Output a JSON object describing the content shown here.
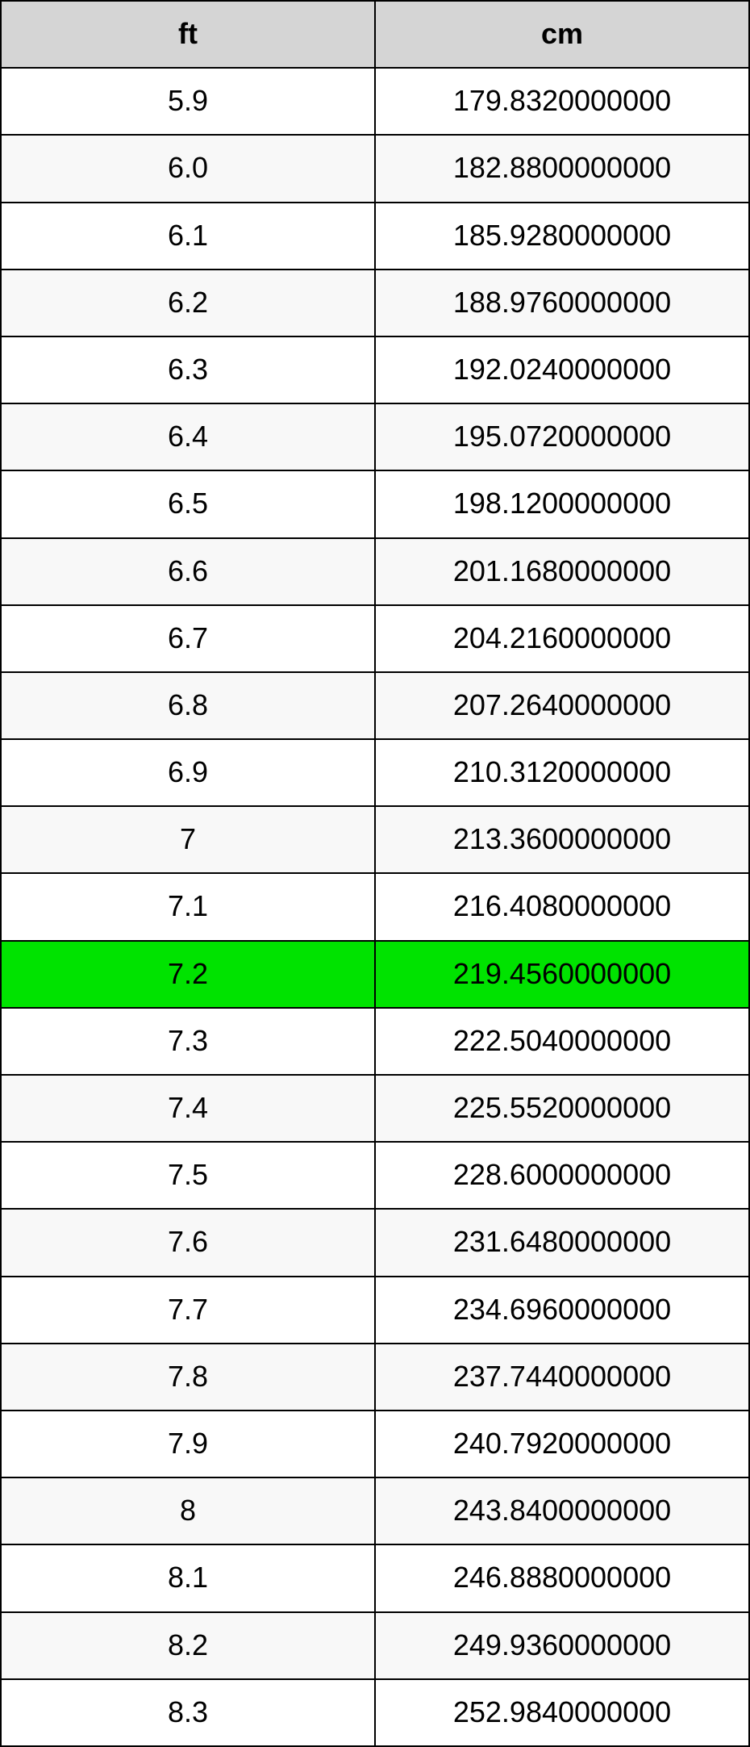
{
  "conversion_table": {
    "type": "table",
    "columns": [
      "ft",
      "cm"
    ],
    "column_widths": [
      "50%",
      "50%"
    ],
    "header_background": "#d5d5d5",
    "header_text_color": "#000000",
    "row_odd_background": "#ffffff",
    "row_even_background": "#f8f8f8",
    "highlight_background": "#00e300",
    "highlight_text_color": "#000000",
    "border_color": "#000000",
    "cell_text_color": "#000000",
    "font_family": "Helvetica Neue, Helvetica, Arial, sans-serif",
    "header_font_size_pt": 28,
    "cell_font_size_pt": 27,
    "highlight_row_index": 13,
    "rows": [
      [
        "5.9",
        "179.8320000000"
      ],
      [
        "6.0",
        "182.8800000000"
      ],
      [
        "6.1",
        "185.9280000000"
      ],
      [
        "6.2",
        "188.9760000000"
      ],
      [
        "6.3",
        "192.0240000000"
      ],
      [
        "6.4",
        "195.0720000000"
      ],
      [
        "6.5",
        "198.1200000000"
      ],
      [
        "6.6",
        "201.1680000000"
      ],
      [
        "6.7",
        "204.2160000000"
      ],
      [
        "6.8",
        "207.2640000000"
      ],
      [
        "6.9",
        "210.3120000000"
      ],
      [
        "7",
        "213.3600000000"
      ],
      [
        "7.1",
        "216.4080000000"
      ],
      [
        "7.2",
        "219.4560000000"
      ],
      [
        "7.3",
        "222.5040000000"
      ],
      [
        "7.4",
        "225.5520000000"
      ],
      [
        "7.5",
        "228.6000000000"
      ],
      [
        "7.6",
        "231.6480000000"
      ],
      [
        "7.7",
        "234.6960000000"
      ],
      [
        "7.8",
        "237.7440000000"
      ],
      [
        "7.9",
        "240.7920000000"
      ],
      [
        "8",
        "243.8400000000"
      ],
      [
        "8.1",
        "246.8880000000"
      ],
      [
        "8.2",
        "249.9360000000"
      ],
      [
        "8.3",
        "252.9840000000"
      ]
    ]
  }
}
